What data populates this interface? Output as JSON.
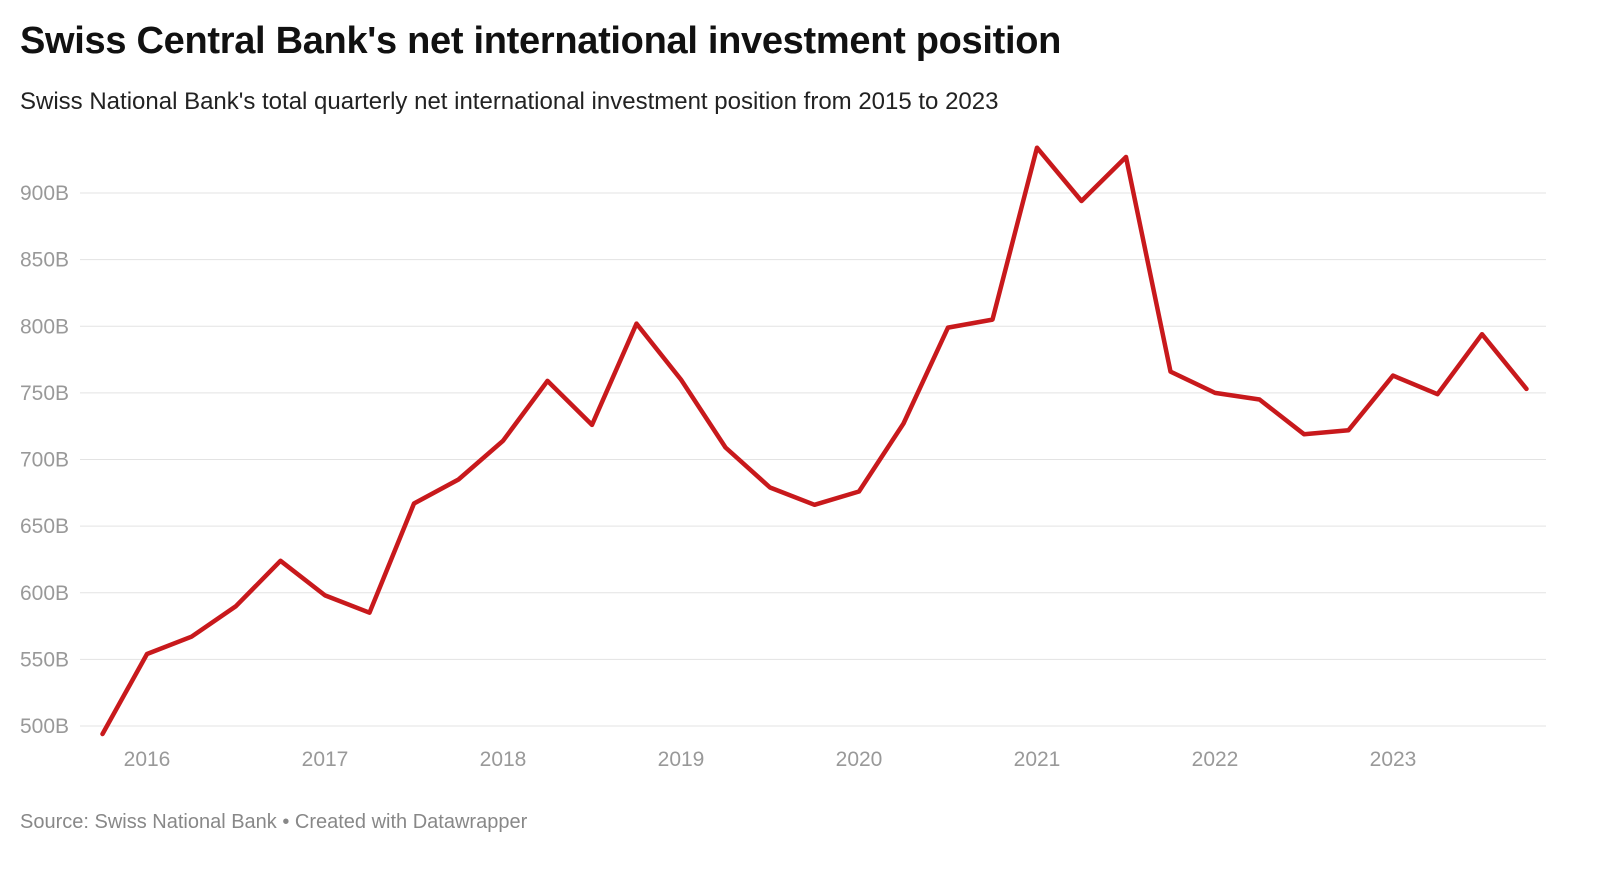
{
  "header": {
    "title": "Swiss Central Bank's net international investment position",
    "subtitle": "Swiss National Bank's total quarterly net international investment position from 2015 to 2023"
  },
  "footer": {
    "source": "Source: Swiss National Bank • Created with Datawrapper"
  },
  "chart_data": {
    "type": "line",
    "title": "Swiss Central Bank's net international investment position",
    "subtitle": "Swiss National Bank's total quarterly net international investment position from 2015 to 2023",
    "xlabel": "",
    "ylabel": "",
    "unit": "B",
    "ylim": [
      500,
      900
    ],
    "yticks": [
      500,
      550,
      600,
      650,
      700,
      750,
      800,
      850,
      900
    ],
    "ytick_labels": [
      "500B",
      "550B",
      "600B",
      "650B",
      "700B",
      "750B",
      "800B",
      "850B",
      "900B"
    ],
    "xticks": [
      "2016",
      "2017",
      "2018",
      "2019",
      "2020",
      "2021",
      "2022",
      "2023"
    ],
    "grid": true,
    "line_color": "#c8191c",
    "x": [
      "2015Q3",
      "2015Q4",
      "2016Q1",
      "2016Q2",
      "2016Q3",
      "2016Q4",
      "2017Q1",
      "2017Q2",
      "2017Q3",
      "2017Q4",
      "2018Q1",
      "2018Q2",
      "2018Q3",
      "2018Q4",
      "2019Q1",
      "2019Q2",
      "2019Q3",
      "2019Q4",
      "2020Q1",
      "2020Q2",
      "2020Q3",
      "2020Q4",
      "2021Q1",
      "2021Q2",
      "2021Q3",
      "2021Q4",
      "2022Q1",
      "2022Q2",
      "2022Q3",
      "2022Q4",
      "2023Q1",
      "2023Q2",
      "2023Q3"
    ],
    "values": [
      494,
      554,
      567,
      590,
      624,
      598,
      585,
      667,
      685,
      714,
      759,
      726,
      802,
      760,
      709,
      679,
      666,
      676,
      727,
      799,
      805,
      934,
      894,
      927,
      766,
      750,
      745,
      719,
      722,
      763,
      749,
      794,
      753
    ]
  }
}
